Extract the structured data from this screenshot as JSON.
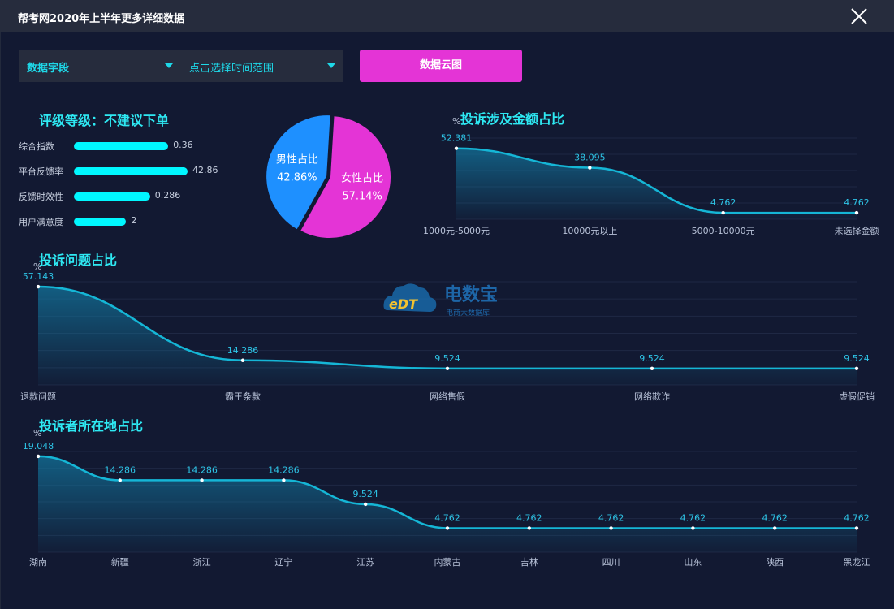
{
  "window": {
    "title": "帮考网2020年上半年更多详细数据"
  },
  "filters": {
    "field_label": "数据字段",
    "time_label": "点击选择时间范围",
    "cloud_button": "数据云图"
  },
  "rating": {
    "title": "评级等级：不建议下单",
    "items": [
      {
        "name": "综合指数",
        "value": "0.36",
        "fraction": 0.83
      },
      {
        "name": "平台反馈率",
        "value": "42.86",
        "fraction": 1.0
      },
      {
        "name": "反馈时效性",
        "value": "0.286",
        "fraction": 0.67
      },
      {
        "name": "用户满意度",
        "value": "2",
        "fraction": 0.46
      }
    ]
  },
  "watermark": {
    "brand": "电数宝",
    "sub": "电商大数据库",
    "logo": "eDT"
  },
  "colors": {
    "accent": "#2ee9f3",
    "line": "#15b6d6",
    "male": "#1e90ff",
    "female": "#e434d6",
    "button": "#e434d6"
  },
  "chart_data": [
    {
      "type": "pie",
      "slices": [
        {
          "label": "男性占比",
          "value": 42.86,
          "display": "42.86%"
        },
        {
          "label": "女性占比",
          "value": 57.14,
          "display": "57.14%"
        }
      ]
    },
    {
      "type": "area",
      "title": "投诉涉及金额占比",
      "ylabel": "%",
      "categories": [
        "1000元-5000元",
        "10000元以上",
        "5000-10000元",
        "未选择金额"
      ],
      "values": [
        52.381,
        38.095,
        4.762,
        4.762
      ],
      "labels": [
        "52.381",
        "38.095",
        "4.762",
        "4.762"
      ],
      "ylim": [
        0,
        60
      ]
    },
    {
      "type": "area",
      "title": "投诉问题占比",
      "ylabel": "%",
      "categories": [
        "退款问题",
        "霸王条款",
        "网络售假",
        "网络欺诈",
        "虚假促销"
      ],
      "values": [
        57.143,
        14.286,
        9.524,
        9.524,
        9.524
      ],
      "labels": [
        "57.143",
        "14.286",
        "9.524",
        "9.524",
        "9.524"
      ],
      "ylim": [
        0,
        60
      ]
    },
    {
      "type": "area",
      "title": "投诉者所在地占比",
      "ylabel": "%",
      "categories": [
        "湖南",
        "新疆",
        "浙江",
        "辽宁",
        "江苏",
        "内蒙古",
        "吉林",
        "四川",
        "山东",
        "陕西",
        "黑龙江"
      ],
      "values": [
        19.048,
        14.286,
        14.286,
        14.286,
        9.524,
        4.762,
        4.762,
        4.762,
        4.762,
        4.762,
        4.762
      ],
      "labels": [
        "19.048",
        "14.286",
        "14.286",
        "14.286",
        "9.524",
        "4.762",
        "4.762",
        "4.762",
        "4.762",
        "4.762",
        "4.762"
      ],
      "ylim": [
        0,
        20
      ]
    }
  ]
}
